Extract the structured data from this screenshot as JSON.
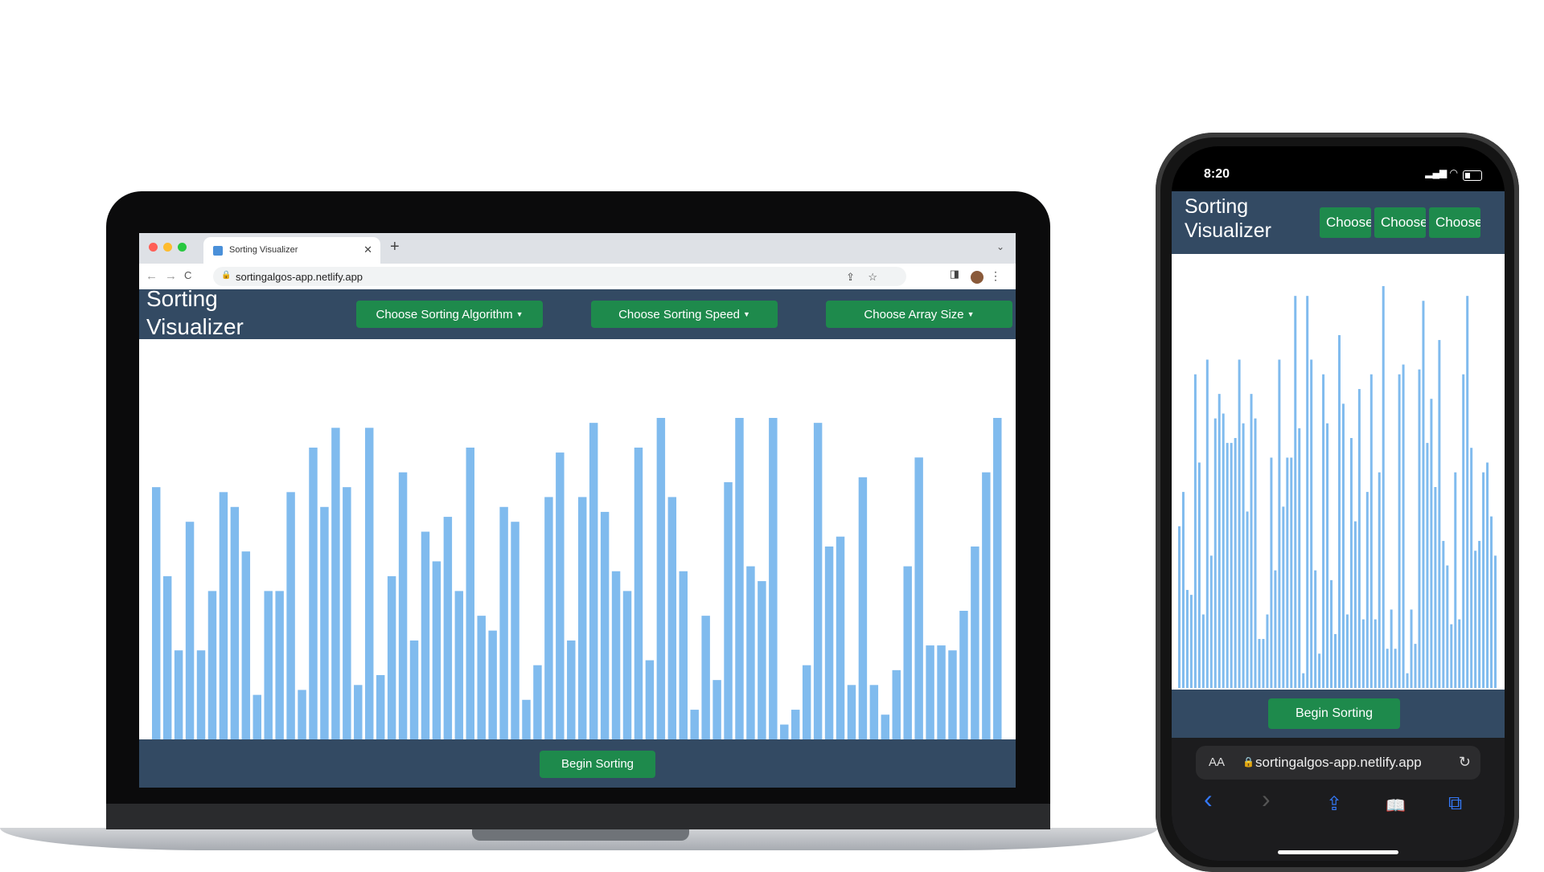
{
  "laptop": {
    "tab": {
      "title": "Sorting Visualizer",
      "close": "✕",
      "new": "+",
      "menu": "⌄"
    },
    "toolbar": {
      "back": "←",
      "forward": "→",
      "reload": "C",
      "lock": "🔒",
      "url": "sortingalgos-app.netlify.app",
      "share": "⇪",
      "star": "☆",
      "sidepanel": "◨",
      "kebab": "⋮"
    },
    "header": {
      "title": "Sorting Visualizer",
      "buttons": [
        {
          "label": "Choose Sorting Algorithm"
        },
        {
          "label": "Choose Sorting Speed"
        },
        {
          "label": "Choose Array Size"
        }
      ]
    },
    "bars": [
      51,
      33,
      18,
      44,
      18,
      30,
      50,
      47,
      38,
      9,
      30,
      30,
      50,
      10,
      59,
      47,
      63,
      51,
      11,
      63,
      13,
      33,
      54,
      20,
      42,
      36,
      45,
      30,
      59,
      25,
      22,
      47,
      44,
      8,
      15,
      49,
      58,
      20,
      49,
      64,
      46,
      34,
      30,
      59,
      16,
      65,
      49,
      34,
      6,
      25,
      12,
      52,
      65,
      35,
      32,
      65,
      3,
      6,
      15,
      64,
      39,
      41,
      11,
      53,
      11,
      5,
      14,
      35,
      57,
      19,
      19,
      18,
      26,
      39,
      54,
      65
    ],
    "bar_color": "#80bbee",
    "footer": {
      "begin": "Begin Sorting"
    }
  },
  "phone": {
    "status": {
      "time": "8:20",
      "signal": "▂▄▆ ◠"
    },
    "header": {
      "title": "Sorting Visualizer",
      "buttons": [
        {
          "label": "Choose Sorting Algorithm"
        },
        {
          "label": "Choose Sorting Speed"
        },
        {
          "label": "Choose Array Size"
        }
      ]
    },
    "bars": [
      33,
      40,
      20,
      19,
      64,
      46,
      15,
      67,
      27,
      55,
      60,
      56,
      50,
      50,
      51,
      67,
      54,
      36,
      60,
      55,
      10,
      10,
      15,
      47,
      24,
      67,
      37,
      47,
      47,
      80,
      53,
      3,
      80,
      67,
      24,
      7,
      64,
      54,
      22,
      11,
      72,
      58,
      15,
      51,
      34,
      61,
      14,
      40,
      64,
      14,
      44,
      82,
      8,
      16,
      8,
      64,
      66,
      3,
      16,
      9,
      65,
      79,
      50,
      59,
      41,
      71,
      30,
      25,
      13,
      44,
      14,
      64,
      80,
      49,
      28,
      30,
      44,
      46,
      35,
      27
    ],
    "footer": {
      "begin": "Begin Sorting"
    },
    "safari": {
      "aa": "AA",
      "lock": "🔒",
      "url": "sortingalgos-app.netlify.app",
      "reload": "↻"
    },
    "nav": {
      "back": "‹",
      "forward": "›",
      "share": "⇪",
      "bookmarks": "📖",
      "tabs": "⧉"
    }
  },
  "colors": {
    "header_bg": "#334a63",
    "button_green": "#1e8a4c",
    "bar_blue": "#80bbee"
  }
}
